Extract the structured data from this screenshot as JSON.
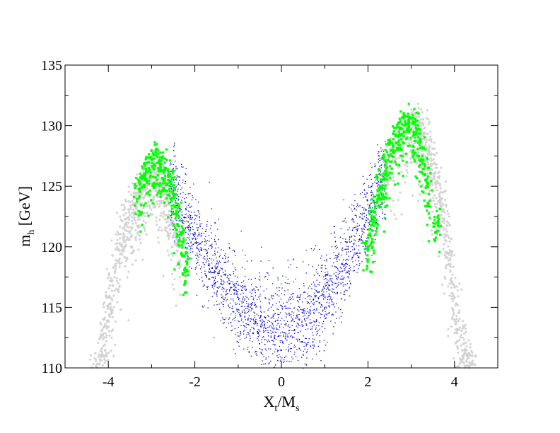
{
  "chart_data": {
    "type": "scatter",
    "title": "",
    "xlabel": "X_t/M_s",
    "ylabel": "m_h [GeV]",
    "xlim": [
      -5,
      5
    ],
    "ylim": [
      110,
      135
    ],
    "xticks": [
      -4,
      -2,
      0,
      2,
      4
    ],
    "xtick_labels": [
      "-4",
      "-2",
      "0",
      "2",
      "4"
    ],
    "yticks": [
      110,
      115,
      120,
      125,
      130,
      135
    ],
    "ytick_labels": [
      "110",
      "115",
      "120",
      "125",
      "130",
      "135"
    ],
    "grid": false,
    "legend": "none",
    "series": [
      {
        "color": "#d3d3d3",
        "marker": "diamond",
        "values_description": "all scanned points",
        "points": [
          [
            -4.3,
            110.6
          ],
          [
            -4.2,
            112.0
          ],
          [
            -4.1,
            113.8
          ],
          [
            -4.0,
            115.8
          ],
          [
            -3.9,
            118.0
          ],
          [
            -3.8,
            120.5
          ],
          [
            -3.7,
            122.3
          ],
          [
            -3.6,
            123.3
          ],
          [
            -3.5,
            124.0
          ],
          [
            -3.4,
            124.6
          ],
          [
            -3.3,
            125.2
          ],
          [
            -3.2,
            125.8
          ],
          [
            -3.1,
            126.5
          ],
          [
            -3.0,
            126.8
          ],
          [
            -2.9,
            126.7
          ],
          [
            -2.8,
            126.2
          ],
          [
            -2.7,
            125.5
          ],
          [
            -2.6,
            124.4
          ],
          [
            -2.5,
            123.2
          ],
          [
            -2.4,
            121.9
          ],
          [
            2.4,
            127.6
          ],
          [
            2.6,
            128.8
          ],
          [
            2.8,
            130.0
          ],
          [
            3.0,
            131.2
          ],
          [
            3.1,
            131.4
          ],
          [
            3.2,
            131.0
          ],
          [
            3.3,
            130.2
          ],
          [
            3.4,
            129.3
          ],
          [
            3.5,
            128.2
          ],
          [
            3.6,
            126.6
          ],
          [
            3.7,
            124.8
          ],
          [
            3.8,
            122.6
          ],
          [
            3.9,
            120.0
          ],
          [
            4.0,
            117.2
          ],
          [
            4.1,
            114.8
          ],
          [
            4.2,
            113.1
          ],
          [
            4.3,
            112.0
          ],
          [
            4.4,
            111.2
          ]
        ]
      },
      {
        "color": "#0000cd",
        "marker": "point",
        "values_description": "band of points across the central valley",
        "points": [
          [
            -2.5,
            124.5
          ],
          [
            -2.3,
            123.0
          ],
          [
            -2.1,
            121.5
          ],
          [
            -1.9,
            120.2
          ],
          [
            -1.7,
            119.0
          ],
          [
            -1.5,
            117.9
          ],
          [
            -1.3,
            116.9
          ],
          [
            -1.1,
            115.9
          ],
          [
            -0.9,
            115.0
          ],
          [
            -0.7,
            114.3
          ],
          [
            -0.5,
            113.7
          ],
          [
            -0.3,
            113.3
          ],
          [
            -0.1,
            113.1
          ],
          [
            0.1,
            113.1
          ],
          [
            0.3,
            113.4
          ],
          [
            0.5,
            113.9
          ],
          [
            0.7,
            114.6
          ],
          [
            0.9,
            115.5
          ],
          [
            1.1,
            116.6
          ],
          [
            1.3,
            117.8
          ],
          [
            1.5,
            119.1
          ],
          [
            1.7,
            120.6
          ],
          [
            1.9,
            122.1
          ],
          [
            2.1,
            123.7
          ],
          [
            2.3,
            125.3
          ]
        ]
      },
      {
        "color": "#00ff00",
        "marker": "square",
        "values_description": "highlighted subset near the two maxima",
        "points": [
          [
            -3.3,
            125.5
          ],
          [
            -3.2,
            126.8
          ],
          [
            -3.1,
            127.4
          ],
          [
            -3.0,
            127.8
          ],
          [
            -2.9,
            128.1
          ],
          [
            -2.8,
            127.9
          ],
          [
            -2.7,
            127.4
          ],
          [
            -2.6,
            126.6
          ],
          [
            -2.5,
            125.4
          ],
          [
            -2.4,
            123.6
          ],
          [
            -2.3,
            121.6
          ],
          [
            -2.2,
            119.7
          ],
          [
            2.0,
            121.0
          ],
          [
            2.1,
            122.8
          ],
          [
            2.2,
            124.6
          ],
          [
            2.3,
            126.2
          ],
          [
            2.4,
            127.6
          ],
          [
            2.5,
            128.7
          ],
          [
            2.6,
            129.6
          ],
          [
            2.7,
            130.3
          ],
          [
            2.8,
            130.8
          ],
          [
            2.9,
            131.1
          ],
          [
            3.0,
            131.2
          ],
          [
            3.1,
            130.7
          ],
          [
            3.2,
            129.5
          ],
          [
            3.3,
            127.8
          ],
          [
            3.4,
            125.9
          ],
          [
            3.6,
            123.0
          ]
        ]
      }
    ]
  }
}
